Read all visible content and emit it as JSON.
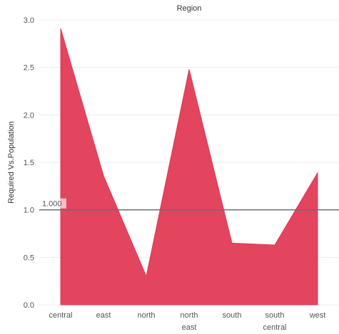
{
  "chart_data": {
    "type": "area",
    "title": "Region",
    "ylabel": "Required Vs.Population",
    "xlabel": "",
    "categories": [
      "central",
      "east",
      "north",
      "north\neast",
      "south",
      "south\ncentral",
      "west"
    ],
    "series": [
      {
        "values": [
          2.91,
          1.36,
          0.3,
          2.48,
          0.65,
          0.63,
          1.39
        ]
      }
    ],
    "ylim": [
      0,
      3.0
    ],
    "yticks": [
      "0.0",
      "0.5",
      "1.0",
      "1.5",
      "2.0",
      "2.5",
      "3.0"
    ],
    "reference_line": {
      "value": 1.0,
      "label": "1.000"
    },
    "grid": true,
    "colors": {
      "area": "#e13a55",
      "reference": "#6b6b6b",
      "grid": "#ececec"
    }
  }
}
